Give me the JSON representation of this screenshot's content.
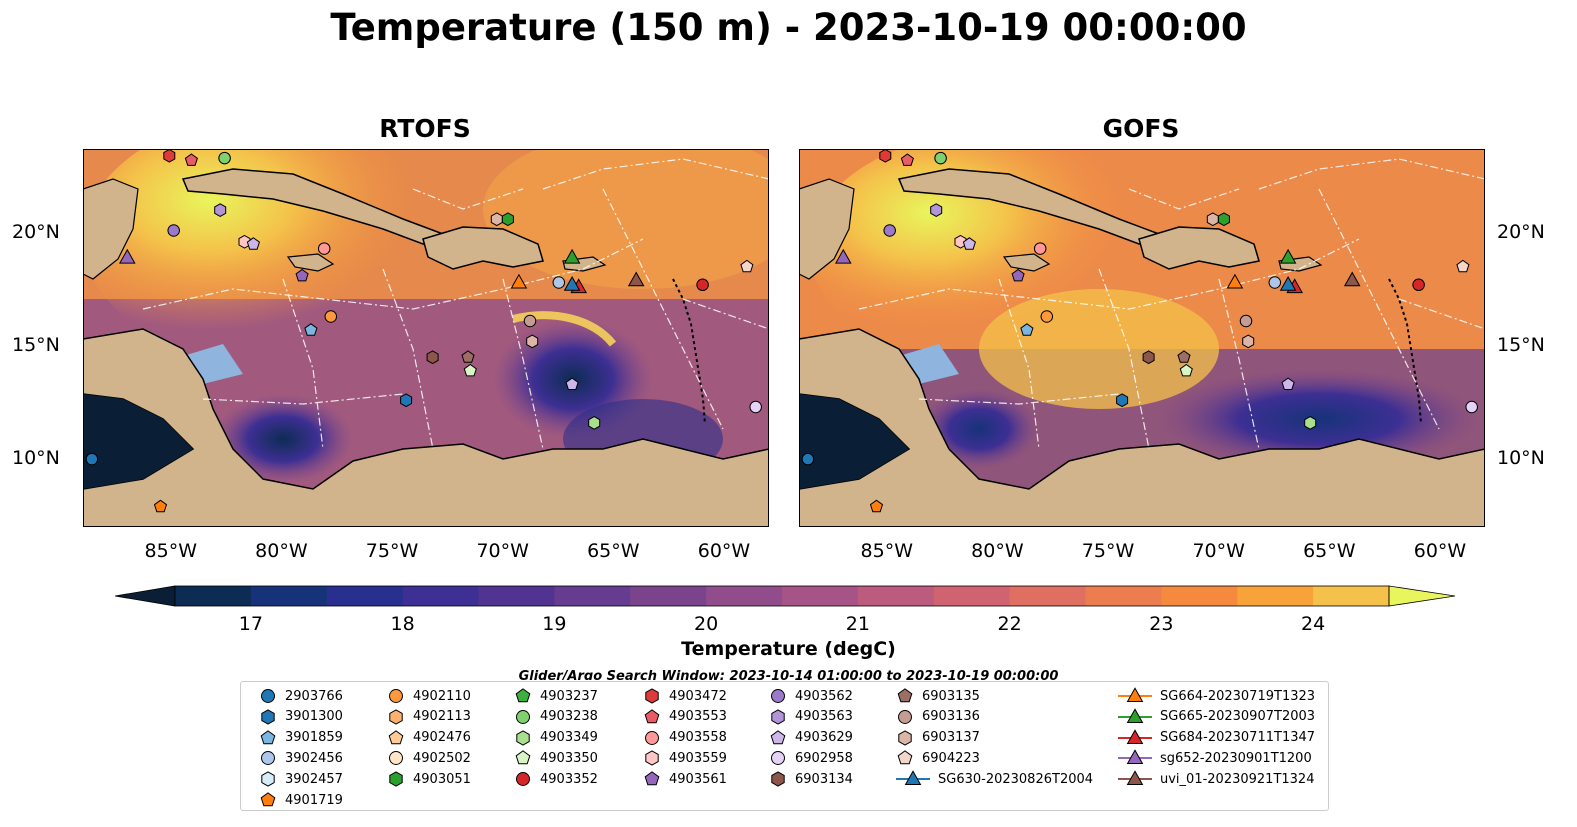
{
  "title": "Temperature (150 m) - 2023-10-19 00:00:00",
  "panels": [
    {
      "title": "RTOFS",
      "id": "rtofs"
    },
    {
      "title": "GOFS",
      "id": "gofs"
    }
  ],
  "colorbar": {
    "label": "Temperature (degC)",
    "ticks": [
      "17",
      "18",
      "19",
      "20",
      "21",
      "22",
      "23",
      "24"
    ],
    "range": [
      16.5,
      24.5
    ],
    "step": 0.5,
    "colors": [
      "#0a1f36",
      "#0d2c54",
      "#16337a",
      "#282f8f",
      "#3d2f93",
      "#513492",
      "#653c8f",
      "#7a448d",
      "#914c8b",
      "#a65388",
      "#bb5c7f",
      "#cf6371",
      "#df6f60",
      "#ec7d4e",
      "#f58a3f",
      "#f7a33a",
      "#f4c24a",
      "#e9f55c"
    ],
    "extend": "both"
  },
  "chart_data": {
    "type": "heatmap",
    "variable": "Temperature (150 m)",
    "units": "degC",
    "time": "2023-10-19 00:00:00",
    "panels": [
      "RTOFS",
      "GOFS"
    ],
    "x_ticks": [
      "85°W",
      "80°W",
      "75°W",
      "70°W",
      "65°W",
      "60°W"
    ],
    "y_ticks": [
      "10°N",
      "15°N",
      "20°N"
    ],
    "xlim": [
      -89,
      -58
    ],
    "ylim": [
      7,
      23.7
    ],
    "color_range": [
      17,
      24
    ]
  },
  "search_window": "Glider/Argo Search Window: 2023-10-14 01:00:00 to 2023-10-19 00:00:00",
  "legend": [
    {
      "label": "2903766",
      "color": "#1f77b4",
      "marker": "circle",
      "col": 0,
      "row": 0
    },
    {
      "label": "3901300",
      "color": "#1f77b4",
      "marker": "hexagon",
      "col": 0,
      "row": 1
    },
    {
      "label": "3901859",
      "color": "#7ab6e0",
      "marker": "pentagon",
      "col": 0,
      "row": 2
    },
    {
      "label": "3902456",
      "color": "#aec7e8",
      "marker": "circle",
      "col": 0,
      "row": 3
    },
    {
      "label": "3902457",
      "color": "#d6ecf7",
      "marker": "hexagon",
      "col": 0,
      "row": 4
    },
    {
      "label": "4901719",
      "color": "#ff7f0e",
      "marker": "pentagon",
      "col": 0,
      "row": 5
    },
    {
      "label": "4902110",
      "color": "#ff9a3c",
      "marker": "circle",
      "col": 1,
      "row": 0
    },
    {
      "label": "4902113",
      "color": "#ffb26e",
      "marker": "hexagon",
      "col": 1,
      "row": 1
    },
    {
      "label": "4902476",
      "color": "#ffcc99",
      "marker": "pentagon",
      "col": 1,
      "row": 2
    },
    {
      "label": "4902502",
      "color": "#ffe6c8",
      "marker": "circle",
      "col": 1,
      "row": 3
    },
    {
      "label": "4903051",
      "color": "#2ca02c",
      "marker": "hexagon",
      "col": 1,
      "row": 4
    },
    {
      "label": "4903237",
      "color": "#3cb03c",
      "marker": "pentagon",
      "col": 2,
      "row": 0
    },
    {
      "label": "4903238",
      "color": "#7fd06f",
      "marker": "circle",
      "col": 2,
      "row": 1
    },
    {
      "label": "4903349",
      "color": "#a8e08e",
      "marker": "hexagon",
      "col": 2,
      "row": 2
    },
    {
      "label": "4903350",
      "color": "#d8f5c6",
      "marker": "pentagon",
      "col": 2,
      "row": 3
    },
    {
      "label": "4903352",
      "color": "#d62728",
      "marker": "circle",
      "col": 2,
      "row": 4
    },
    {
      "label": "4903472",
      "color": "#dd3a3a",
      "marker": "hexagon",
      "col": 3,
      "row": 0
    },
    {
      "label": "4903553",
      "color": "#ea5c63",
      "marker": "pentagon",
      "col": 3,
      "row": 1
    },
    {
      "label": "4903558",
      "color": "#ff9896",
      "marker": "circle",
      "col": 3,
      "row": 2
    },
    {
      "label": "4903559",
      "color": "#ffc6c4",
      "marker": "hexagon",
      "col": 3,
      "row": 3
    },
    {
      "label": "4903561",
      "color": "#9467bd",
      "marker": "pentagon",
      "col": 3,
      "row": 4
    },
    {
      "label": "4903562",
      "color": "#9c79c9",
      "marker": "circle",
      "col": 4,
      "row": 0
    },
    {
      "label": "4903563",
      "color": "#b294d8",
      "marker": "hexagon",
      "col": 4,
      "row": 1
    },
    {
      "label": "4903629",
      "color": "#cdb7ea",
      "marker": "pentagon",
      "col": 4,
      "row": 2
    },
    {
      "label": "6902958",
      "color": "#e4d2f7",
      "marker": "circle",
      "col": 4,
      "row": 3
    },
    {
      "label": "6903134",
      "color": "#8c564b",
      "marker": "hexagon",
      "col": 4,
      "row": 4
    },
    {
      "label": "6903135",
      "color": "#9d6e63",
      "marker": "pentagon",
      "col": 5,
      "row": 0
    },
    {
      "label": "6903136",
      "color": "#c49c94",
      "marker": "circle",
      "col": 5,
      "row": 1
    },
    {
      "label": "6903137",
      "color": "#dcb5a6",
      "marker": "hexagon",
      "col": 5,
      "row": 2
    },
    {
      "label": "6904223",
      "color": "#f3d7cb",
      "marker": "pentagon",
      "col": 5,
      "row": 3
    },
    {
      "label": "SG630-20230826T2004",
      "color": "#1f77b4",
      "marker": "triangle",
      "line": true,
      "col": 5,
      "row": 4
    },
    {
      "label": "SG664-20230719T1323",
      "color": "#ff7f0e",
      "marker": "triangle",
      "line": true,
      "col": 6,
      "row": 0
    },
    {
      "label": "SG665-20230907T2003",
      "color": "#2ca02c",
      "marker": "triangle",
      "line": true,
      "col": 6,
      "row": 1
    },
    {
      "label": "SG684-20230711T1347",
      "color": "#d62728",
      "marker": "triangle",
      "line": true,
      "col": 6,
      "row": 2
    },
    {
      "label": "sg652-20230901T1200",
      "color": "#9467bd",
      "marker": "triangle",
      "line": true,
      "col": 6,
      "row": 3
    },
    {
      "label": "uvi_01-20230921T1324",
      "color": "#8c564b",
      "marker": "triangle",
      "line": true,
      "col": 6,
      "row": 4
    }
  ],
  "floats": [
    {
      "id": "2903766",
      "lon": -88.6,
      "lat": 10.0
    },
    {
      "id": "4901719",
      "lon": -85.5,
      "lat": 7.9
    },
    {
      "id": "4903472",
      "lon": -85.1,
      "lat": 23.4
    },
    {
      "id": "4903553",
      "lon": -84.1,
      "lat": 23.2
    },
    {
      "id": "4903238",
      "lon": -82.6,
      "lat": 23.3
    },
    {
      "id": "4903563",
      "lon": -82.8,
      "lat": 21.0
    },
    {
      "id": "4903562",
      "lon": -84.9,
      "lat": 20.1
    },
    {
      "id": "4903559",
      "lon": -81.7,
      "lat": 19.6
    },
    {
      "id": "4903629",
      "lon": -81.3,
      "lat": 19.5
    },
    {
      "id": "4903561",
      "lon": -79.1,
      "lat": 18.1
    },
    {
      "id": "4903558",
      "lon": -78.1,
      "lat": 19.3
    },
    {
      "id": "4902110",
      "lon": -77.8,
      "lat": 16.3
    },
    {
      "id": "3901859",
      "lon": -78.7,
      "lat": 15.7
    },
    {
      "id": "6903134",
      "lon": -73.2,
      "lat": 14.5
    },
    {
      "id": "6903135",
      "lon": -71.6,
      "lat": 14.5
    },
    {
      "id": "4903350",
      "lon": -71.5,
      "lat": 13.9
    },
    {
      "id": "3901300",
      "lon": -74.4,
      "lat": 12.6
    },
    {
      "id": "6903137",
      "lon": -70.3,
      "lat": 20.6
    },
    {
      "id": "4903051",
      "lon": -69.8,
      "lat": 20.6
    },
    {
      "id": "3902456",
      "lon": -67.5,
      "lat": 17.8
    },
    {
      "id": "6903136",
      "lon": -68.8,
      "lat": 16.1
    },
    {
      "id": "6903137b",
      "lon": -68.7,
      "lat": 15.2
    },
    {
      "id": "4903629b",
      "lon": -66.9,
      "lat": 13.3
    },
    {
      "id": "4903349",
      "lon": -65.9,
      "lat": 11.6
    },
    {
      "id": "4903352",
      "lon": -61.0,
      "lat": 17.7
    },
    {
      "id": "6904223",
      "lon": -59.0,
      "lat": 18.5
    },
    {
      "id": "6902958",
      "lon": -58.6,
      "lat": 12.3
    }
  ],
  "gliders": [
    {
      "name": "SG665-20230907T2003",
      "lon": -66.9,
      "lat": 18.9,
      "color": "#2ca02c"
    },
    {
      "name": "SG664-20230719T1323",
      "lon": -69.3,
      "lat": 17.8,
      "color": "#ff7f0e"
    },
    {
      "name": "SG684-20230711T1347",
      "lon": -66.6,
      "lat": 17.6,
      "color": "#d62728"
    },
    {
      "name": "SG630-20230826T2004",
      "lon": -66.9,
      "lat": 17.7,
      "color": "#1f77b4"
    },
    {
      "name": "uvi_01-20230921T1324",
      "lon": -64.0,
      "lat": 17.9,
      "color": "#8c564b"
    },
    {
      "name": "sg652-20230901T1200",
      "lon": -87.0,
      "lat": 18.9,
      "color": "#9467bd"
    }
  ]
}
